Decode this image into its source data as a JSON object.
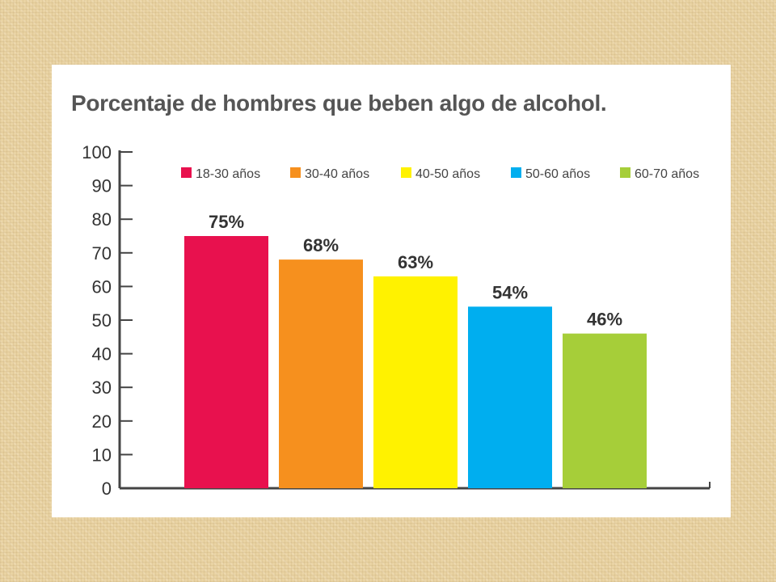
{
  "chart_data": {
    "type": "bar",
    "title": "Porcentaje de hombres que beben algo de alcohol.",
    "xlabel": "",
    "ylabel": "",
    "categories": [
      "18-30 años",
      "30-40 años",
      "40-50 años",
      "50-60 años",
      "60-70 años"
    ],
    "values": [
      75,
      68,
      63,
      54,
      46
    ],
    "value_labels": [
      "75%",
      "68%",
      "63%",
      "54%",
      "46%"
    ],
    "colors": [
      "#e8114e",
      "#f6901e",
      "#fff200",
      "#00aeef",
      "#a6ce39"
    ],
    "ylim": [
      0,
      100
    ],
    "yticks": [
      0,
      10,
      20,
      30,
      40,
      50,
      60,
      70,
      80,
      90,
      100
    ],
    "grid": false,
    "legend_position": "top-right"
  }
}
